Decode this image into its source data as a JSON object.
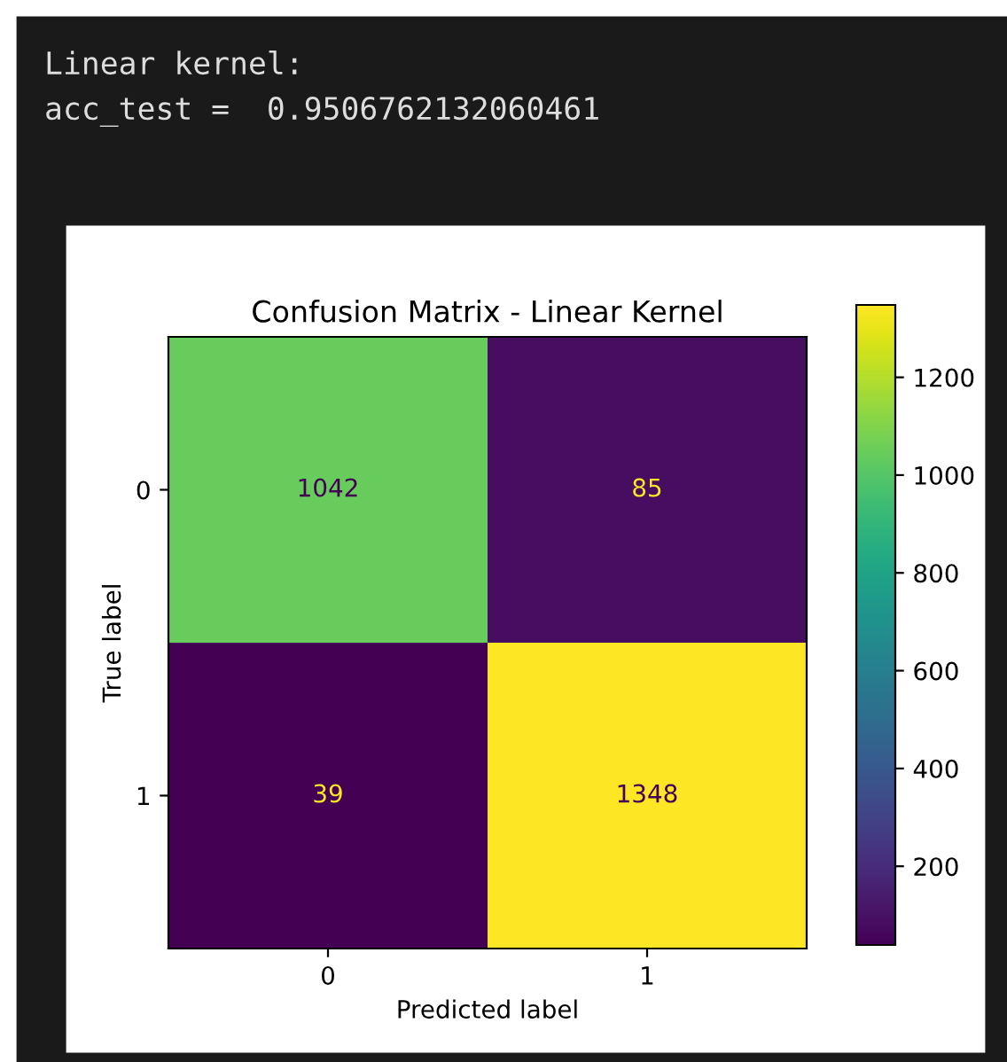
{
  "chart_data": {
    "type": "heatmap",
    "title": "Confusion Matrix - Linear Kernel",
    "xlabel": "Predicted label",
    "ylabel": "True label",
    "categories": [
      "0",
      "1"
    ],
    "y_categories": [
      "0",
      "1"
    ],
    "cells": [
      [
        1042,
        85
      ],
      [
        39,
        1348
      ]
    ],
    "clim": [
      39,
      1348
    ],
    "cticks": [
      200,
      400,
      600,
      800,
      1000,
      1200
    ],
    "data_labels": true,
    "grid": false,
    "annotations": [
      "Linear kernel:",
      "acc_test =  0.9506762132060461"
    ]
  }
}
